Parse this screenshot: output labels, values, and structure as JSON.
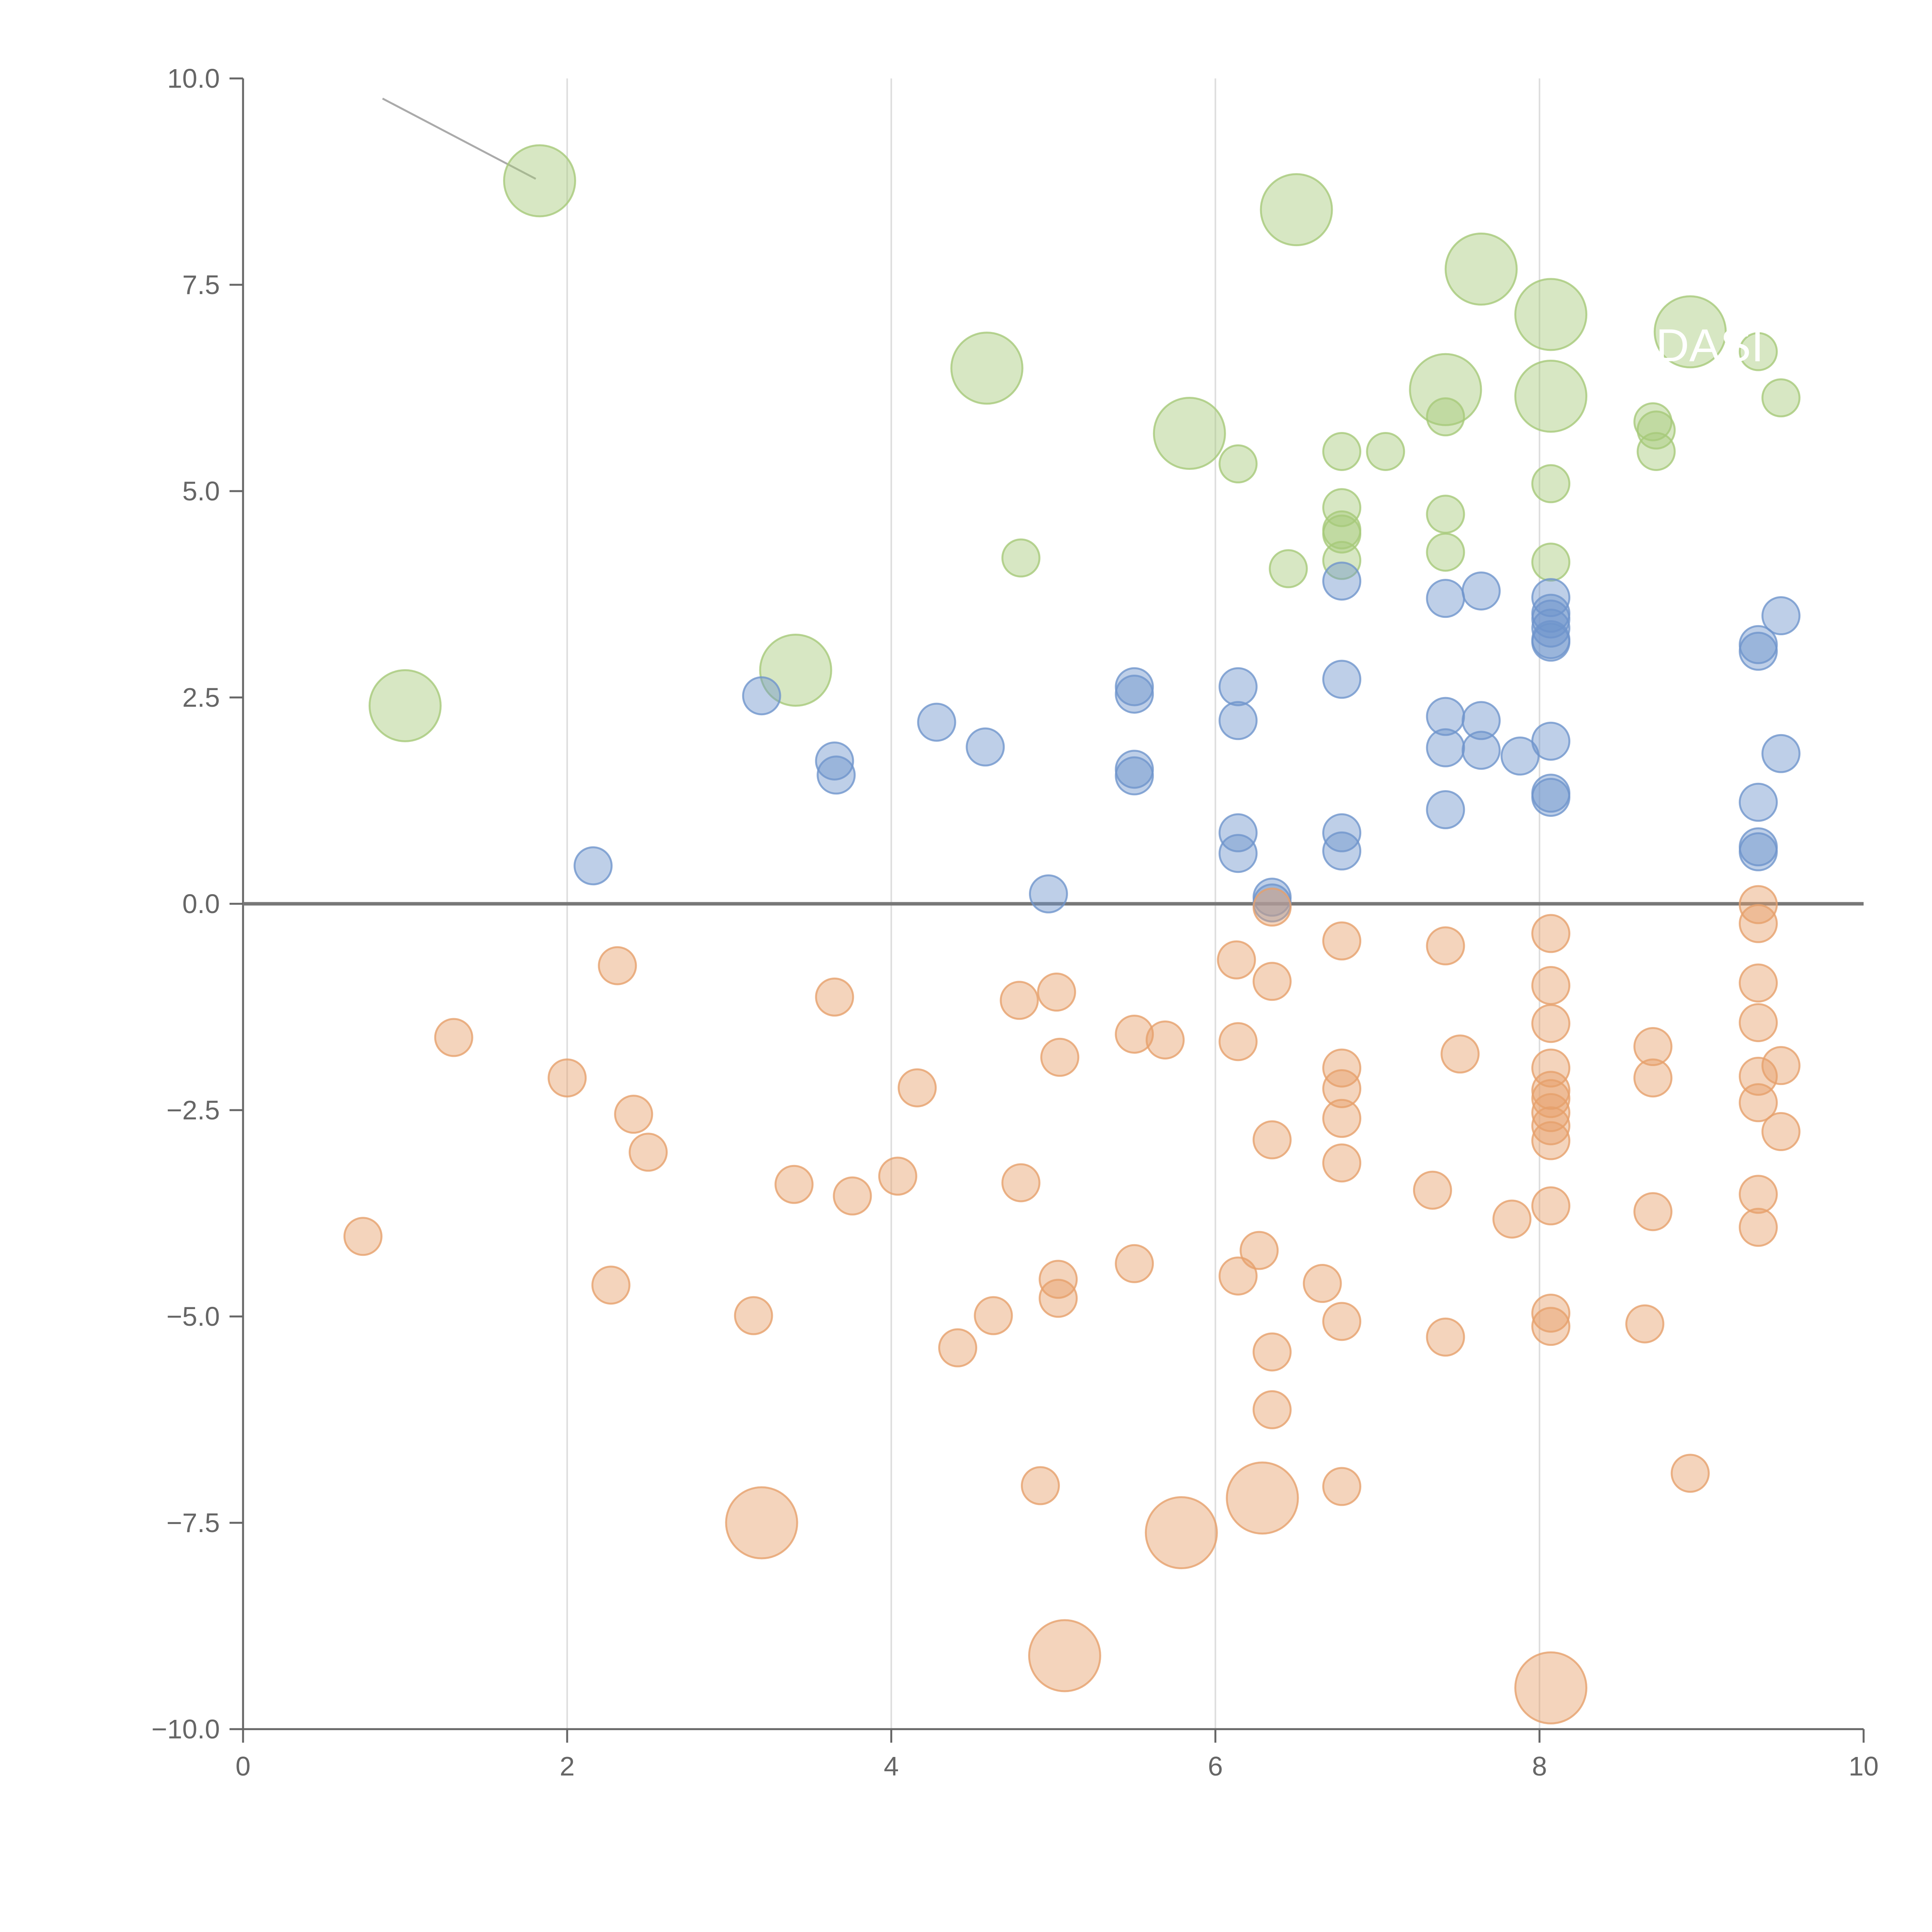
{
  "chart_data": {
    "type": "scatter",
    "title": "",
    "xlabel": "",
    "ylabel": "",
    "xlim": [
      0,
      10
    ],
    "ylim": [
      -10,
      10
    ],
    "x_ticks": [
      "0",
      "2",
      "4",
      "6",
      "8",
      "10"
    ],
    "y_ticks": [
      "10.0",
      "7.5",
      "5.0",
      "2.5",
      "0.0",
      "−2.5",
      "−5.0",
      "−7.5",
      "−10.0"
    ],
    "grid": "vertical",
    "annotation": "DASI",
    "colors": {
      "green": "#a6c979",
      "blue": "#6f95cc",
      "orange": "#e6a06b",
      "axis": "#666666",
      "grid": "#dddddd"
    },
    "series": [
      {
        "color": "green",
        "points": [
          {
            "x": 1.83,
            "y": 8.76,
            "size": 3
          },
          {
            "x": 1.0,
            "y": 2.4,
            "size": 3
          },
          {
            "x": 3.41,
            "y": 2.83,
            "size": 3
          },
          {
            "x": 4.59,
            "y": 6.49,
            "size": 3
          },
          {
            "x": 5.84,
            "y": 5.7,
            "size": 3
          },
          {
            "x": 6.5,
            "y": 8.41,
            "size": 3
          },
          {
            "x": 7.42,
            "y": 6.23,
            "size": 3
          },
          {
            "x": 7.64,
            "y": 7.69,
            "size": 3
          },
          {
            "x": 8.07,
            "y": 7.14,
            "size": 3
          },
          {
            "x": 8.07,
            "y": 6.15,
            "size": 3
          },
          {
            "x": 8.93,
            "y": 6.93,
            "size": 3
          },
          {
            "x": 4.8,
            "y": 4.19,
            "size": 1
          },
          {
            "x": 6.14,
            "y": 5.33,
            "size": 1
          },
          {
            "x": 6.45,
            "y": 4.06,
            "size": 1
          },
          {
            "x": 6.78,
            "y": 5.48,
            "size": 1
          },
          {
            "x": 6.78,
            "y": 4.8,
            "size": 1
          },
          {
            "x": 6.78,
            "y": 4.53,
            "size": 1
          },
          {
            "x": 6.78,
            "y": 4.48,
            "size": 1
          },
          {
            "x": 6.78,
            "y": 4.16,
            "size": 1
          },
          {
            "x": 7.05,
            "y": 5.48,
            "size": 1
          },
          {
            "x": 7.42,
            "y": 5.9,
            "size": 1
          },
          {
            "x": 7.42,
            "y": 4.72,
            "size": 1
          },
          {
            "x": 7.42,
            "y": 4.26,
            "size": 1
          },
          {
            "x": 8.07,
            "y": 5.09,
            "size": 1
          },
          {
            "x": 8.07,
            "y": 4.14,
            "size": 1
          },
          {
            "x": 8.7,
            "y": 5.84,
            "size": 1
          },
          {
            "x": 8.72,
            "y": 5.74,
            "size": 1
          },
          {
            "x": 8.72,
            "y": 5.48,
            "size": 1
          },
          {
            "x": 9.35,
            "y": 6.69,
            "size": 1
          },
          {
            "x": 9.49,
            "y": 6.13,
            "size": 1
          }
        ]
      },
      {
        "color": "blue",
        "points": [
          {
            "x": 2.16,
            "y": 0.46
          },
          {
            "x": 3.2,
            "y": 2.52
          },
          {
            "x": 3.65,
            "y": 1.73
          },
          {
            "x": 3.66,
            "y": 1.56
          },
          {
            "x": 4.28,
            "y": 2.2
          },
          {
            "x": 4.58,
            "y": 1.9
          },
          {
            "x": 4.97,
            "y": 0.12
          },
          {
            "x": 5.5,
            "y": 2.63
          },
          {
            "x": 5.5,
            "y": 2.54
          },
          {
            "x": 5.5,
            "y": 1.63
          },
          {
            "x": 5.5,
            "y": 1.55
          },
          {
            "x": 6.14,
            "y": 2.63
          },
          {
            "x": 6.14,
            "y": 2.22
          },
          {
            "x": 6.14,
            "y": 0.86
          },
          {
            "x": 6.14,
            "y": 0.61
          },
          {
            "x": 6.35,
            "y": 0.08
          },
          {
            "x": 6.35,
            "y": 0.01
          },
          {
            "x": 6.78,
            "y": 3.91
          },
          {
            "x": 6.78,
            "y": 2.72
          },
          {
            "x": 6.78,
            "y": 0.86
          },
          {
            "x": 6.78,
            "y": 0.64
          },
          {
            "x": 7.42,
            "y": 3.7
          },
          {
            "x": 7.42,
            "y": 2.27
          },
          {
            "x": 7.42,
            "y": 1.89
          },
          {
            "x": 7.42,
            "y": 1.14
          },
          {
            "x": 7.64,
            "y": 3.79
          },
          {
            "x": 7.64,
            "y": 2.22
          },
          {
            "x": 7.64,
            "y": 1.86
          },
          {
            "x": 7.88,
            "y": 1.79
          },
          {
            "x": 8.07,
            "y": 3.71
          },
          {
            "x": 8.07,
            "y": 3.52
          },
          {
            "x": 8.07,
            "y": 3.45
          },
          {
            "x": 8.07,
            "y": 3.34
          },
          {
            "x": 8.07,
            "y": 3.2
          },
          {
            "x": 8.07,
            "y": 3.17
          },
          {
            "x": 8.07,
            "y": 1.97
          },
          {
            "x": 8.07,
            "y": 1.34
          },
          {
            "x": 8.07,
            "y": 1.29
          },
          {
            "x": 9.35,
            "y": 3.14
          },
          {
            "x": 9.35,
            "y": 3.06
          },
          {
            "x": 9.35,
            "y": 1.23
          },
          {
            "x": 9.35,
            "y": 0.69
          },
          {
            "x": 9.35,
            "y": 0.63
          },
          {
            "x": 9.49,
            "y": 3.49
          },
          {
            "x": 9.49,
            "y": 1.82
          }
        ]
      },
      {
        "color": "orange",
        "points": [
          {
            "x": 3.2,
            "y": -7.5,
            "size": 3
          },
          {
            "x": 5.07,
            "y": -9.11,
            "size": 3
          },
          {
            "x": 5.79,
            "y": -7.62,
            "size": 3
          },
          {
            "x": 6.29,
            "y": -7.2,
            "size": 3
          },
          {
            "x": 8.07,
            "y": -9.5,
            "size": 3
          },
          {
            "x": 0.74,
            "y": -4.03
          },
          {
            "x": 1.3,
            "y": -1.62
          },
          {
            "x": 2.0,
            "y": -2.11
          },
          {
            "x": 2.27,
            "y": -4.62
          },
          {
            "x": 2.31,
            "y": -0.75
          },
          {
            "x": 2.41,
            "y": -2.55
          },
          {
            "x": 2.5,
            "y": -3.01
          },
          {
            "x": 3.15,
            "y": -4.99
          },
          {
            "x": 3.4,
            "y": -3.4
          },
          {
            "x": 3.65,
            "y": -1.13
          },
          {
            "x": 3.76,
            "y": -3.54
          },
          {
            "x": 4.04,
            "y": -3.3
          },
          {
            "x": 4.16,
            "y": -2.23
          },
          {
            "x": 4.41,
            "y": -5.38
          },
          {
            "x": 4.63,
            "y": -4.99
          },
          {
            "x": 4.79,
            "y": -1.17
          },
          {
            "x": 4.8,
            "y": -3.38
          },
          {
            "x": 4.92,
            "y": -7.05
          },
          {
            "x": 5.02,
            "y": -1.07
          },
          {
            "x": 5.03,
            "y": -4.55
          },
          {
            "x": 5.03,
            "y": -4.78
          },
          {
            "x": 5.04,
            "y": -1.86
          },
          {
            "x": 5.5,
            "y": -1.58
          },
          {
            "x": 5.5,
            "y": -4.36
          },
          {
            "x": 5.69,
            "y": -1.65
          },
          {
            "x": 6.13,
            "y": -0.68
          },
          {
            "x": 6.14,
            "y": -1.67
          },
          {
            "x": 6.14,
            "y": -4.51
          },
          {
            "x": 6.27,
            "y": -4.2
          },
          {
            "x": 6.35,
            "y": -0.04
          },
          {
            "x": 6.35,
            "y": -0.94
          },
          {
            "x": 6.35,
            "y": -2.86
          },
          {
            "x": 6.35,
            "y": -5.43
          },
          {
            "x": 6.35,
            "y": -6.13
          },
          {
            "x": 6.66,
            "y": -4.6
          },
          {
            "x": 6.78,
            "y": -0.45
          },
          {
            "x": 6.78,
            "y": -1.99
          },
          {
            "x": 6.78,
            "y": -2.24
          },
          {
            "x": 6.78,
            "y": -2.6
          },
          {
            "x": 6.78,
            "y": -3.14
          },
          {
            "x": 6.78,
            "y": -5.06
          },
          {
            "x": 6.78,
            "y": -7.06
          },
          {
            "x": 7.34,
            "y": -3.47
          },
          {
            "x": 7.42,
            "y": -0.51
          },
          {
            "x": 7.42,
            "y": -5.25
          },
          {
            "x": 7.51,
            "y": -1.82
          },
          {
            "x": 7.83,
            "y": -3.82
          },
          {
            "x": 8.07,
            "y": -0.36
          },
          {
            "x": 8.07,
            "y": -0.99
          },
          {
            "x": 8.07,
            "y": -1.45
          },
          {
            "x": 8.07,
            "y": -1.99
          },
          {
            "x": 8.07,
            "y": -2.26
          },
          {
            "x": 8.07,
            "y": -2.36
          },
          {
            "x": 8.07,
            "y": -2.53
          },
          {
            "x": 8.07,
            "y": -2.69
          },
          {
            "x": 8.07,
            "y": -2.87
          },
          {
            "x": 8.07,
            "y": -3.66
          },
          {
            "x": 8.07,
            "y": -4.96
          },
          {
            "x": 8.07,
            "y": -5.12
          },
          {
            "x": 8.65,
            "y": -5.09
          },
          {
            "x": 8.7,
            "y": -1.73
          },
          {
            "x": 8.7,
            "y": -2.11
          },
          {
            "x": 8.7,
            "y": -3.73
          },
          {
            "x": 8.93,
            "y": -6.9
          },
          {
            "x": 9.35,
            "y": -0.01
          },
          {
            "x": 9.35,
            "y": -0.24
          },
          {
            "x": 9.35,
            "y": -0.96
          },
          {
            "x": 9.35,
            "y": -1.44
          },
          {
            "x": 9.35,
            "y": -2.09
          },
          {
            "x": 9.35,
            "y": -2.41
          },
          {
            "x": 9.35,
            "y": -3.52
          },
          {
            "x": 9.35,
            "y": -3.92
          },
          {
            "x": 9.49,
            "y": -1.96
          },
          {
            "x": 9.49,
            "y": -2.76
          }
        ]
      }
    ]
  }
}
